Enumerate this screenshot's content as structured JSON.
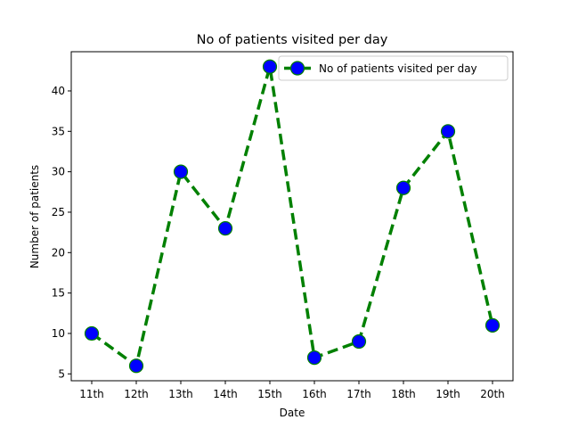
{
  "chart_data": {
    "type": "line",
    "title": "No of patients visited per day",
    "xlabel": "Date",
    "ylabel": "Number of patients",
    "categories": [
      "11th",
      "12th",
      "13th",
      "14th",
      "15th",
      "16th",
      "17th",
      "18th",
      "19th",
      "20th"
    ],
    "series": [
      {
        "name": "No of patients visited per day",
        "values": [
          10,
          6,
          30,
          23,
          43,
          7,
          9,
          28,
          35,
          11
        ],
        "line_color": "#008000",
        "line_style": "dashed",
        "marker": "circle",
        "marker_face_color": "#0000ff",
        "marker_edge_color": "#008000"
      }
    ],
    "yticks": [
      5,
      10,
      15,
      20,
      25,
      30,
      35,
      40
    ],
    "ylim": [
      4.15,
      44.85
    ],
    "grid": false,
    "legend_position": "top-right"
  }
}
